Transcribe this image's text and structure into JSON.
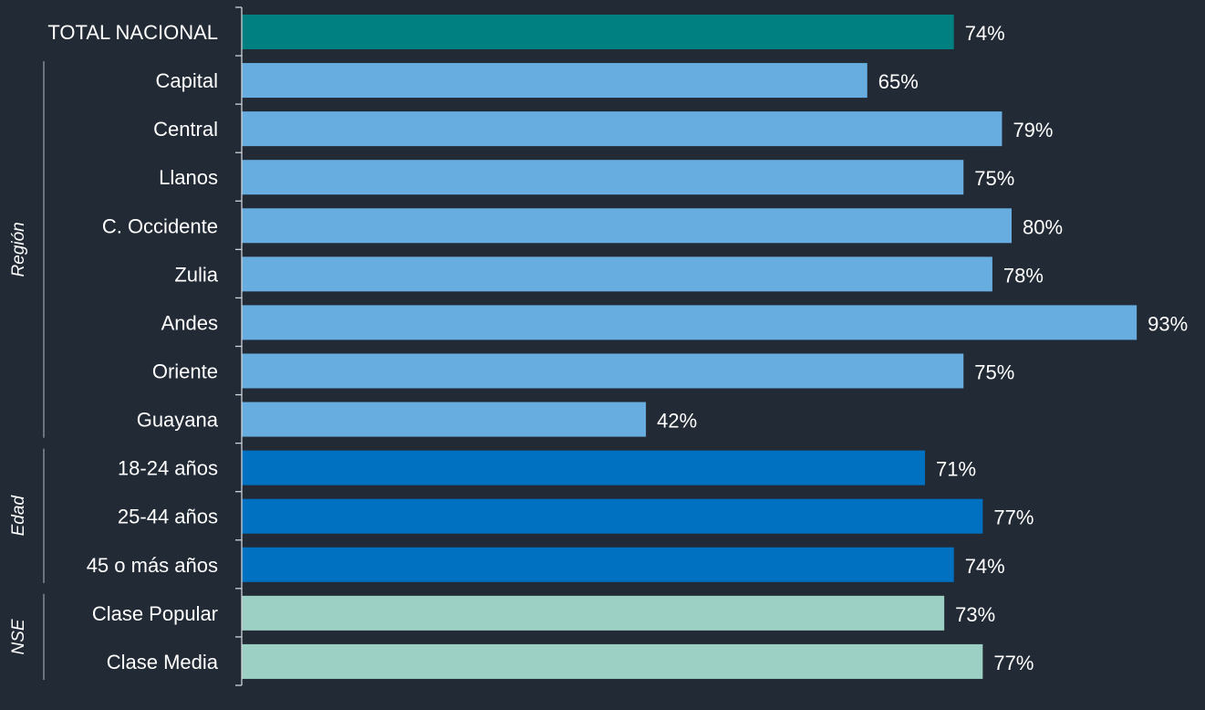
{
  "chart_data": {
    "type": "bar",
    "orientation": "horizontal",
    "xlim": [
      0,
      100
    ],
    "grid": false,
    "categories": [
      "TOTAL NACIONAL",
      "Capital",
      "Central",
      "Llanos",
      "C. Occidente",
      "Zulia",
      "Andes",
      "Oriente",
      "Guayana",
      "18-24 años",
      "25-44 años",
      "45 o más años",
      "Clase Popular",
      "Clase Media"
    ],
    "values": [
      74,
      65,
      79,
      75,
      80,
      78,
      93,
      75,
      42,
      71,
      77,
      74,
      73,
      77
    ],
    "value_labels": [
      "74%",
      "65%",
      "79%",
      "75%",
      "80%",
      "78%",
      "93%",
      "75%",
      "42%",
      "71%",
      "77%",
      "74%",
      "73%",
      "77%"
    ],
    "groups": [
      {
        "name": "",
        "color": "#008080",
        "members": [
          "TOTAL NACIONAL"
        ]
      },
      {
        "name": "Región",
        "color": "#68ade0",
        "members": [
          "Capital",
          "Central",
          "Llanos",
          "C. Occidente",
          "Zulia",
          "Andes",
          "Oriente",
          "Guayana"
        ]
      },
      {
        "name": "Edad",
        "color": "#0070c0",
        "members": [
          "18-24 años",
          "25-44 años",
          "45 o más años"
        ]
      },
      {
        "name": "NSE",
        "color": "#9dd0c5",
        "members": [
          "Clase Popular",
          "Clase Media"
        ]
      }
    ]
  }
}
